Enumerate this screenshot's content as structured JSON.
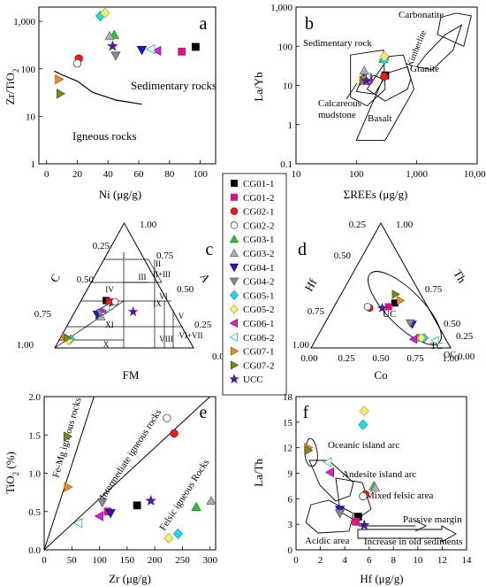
{
  "legend": [
    {
      "name": "CG01-1",
      "shape": "square",
      "fill": "#000000",
      "stroke": "#000000"
    },
    {
      "name": "CG01-2",
      "shape": "square",
      "fill": "#d6157f",
      "stroke": "#d6157f"
    },
    {
      "name": "CG02-1",
      "shape": "circle",
      "fill": "#e02020",
      "stroke": "#b00000"
    },
    {
      "name": "CG02-2",
      "shape": "circle",
      "fill": "#ffffff",
      "stroke": "#444444"
    },
    {
      "name": "CG03-1",
      "shape": "triangle",
      "fill": "#2ec42e",
      "stroke": "#1a8a1a"
    },
    {
      "name": "CG03-2",
      "shape": "triangle",
      "fill": "#b0b0b0",
      "stroke": "#707070"
    },
    {
      "name": "CG04-1",
      "shape": "triangle-down",
      "fill": "#1a1ad0",
      "stroke": "#00008a"
    },
    {
      "name": "CG04-2",
      "shape": "triangle-down",
      "fill": "#8a8a8a",
      "stroke": "#555555"
    },
    {
      "name": "CG05-1",
      "shape": "diamond",
      "fill": "#28d7e6",
      "stroke": "#0aa0b0"
    },
    {
      "name": "CG05-2",
      "shape": "diamond",
      "fill": "#f2ee7a",
      "stroke": "#b8a838"
    },
    {
      "name": "CG06-1",
      "shape": "triangle-left",
      "fill": "#d424d4",
      "stroke": "#8a108a"
    },
    {
      "name": "CG06-2",
      "shape": "triangle-left",
      "fill": "#ffffff",
      "stroke": "#20b0b0"
    },
    {
      "name": "CG07-1",
      "shape": "triangle-right",
      "fill": "#f08a2a",
      "stroke": "#b05a10"
    },
    {
      "name": "CG07-2",
      "shape": "triangle-right",
      "fill": "#7a8a20",
      "stroke": "#4a5a10"
    },
    {
      "name": "UCC",
      "shape": "star",
      "fill": "#4a1a9a",
      "stroke": "#4a1a9a"
    }
  ],
  "chart_data": [
    {
      "panel": "a",
      "type": "scatter",
      "xlabel": "Ni (μg/g)",
      "ylabel": "Zr/TiO2",
      "xlim": [
        -5,
        110
      ],
      "ylim": [
        1,
        2000
      ],
      "yscale": "log",
      "xticks": [
        0,
        20,
        40,
        60,
        80,
        100
      ],
      "yticks": [
        1,
        10,
        100,
        1000
      ],
      "yticklabels": [
        "1",
        "10",
        "100",
        "1,000"
      ],
      "region_labels": [
        "Sedimentary rocks",
        "Igneous rocks"
      ],
      "boundary": [
        [
          5,
          90
        ],
        [
          10,
          75
        ],
        [
          20,
          55
        ],
        [
          30,
          32
        ],
        [
          45,
          22
        ],
        [
          62,
          18
        ]
      ],
      "points": [
        {
          "name": "CG01-1",
          "x": 97,
          "y": 290
        },
        {
          "name": "CG01-2",
          "x": 88,
          "y": 230
        },
        {
          "name": "CG02-1",
          "x": 21,
          "y": 165
        },
        {
          "name": "CG02-2",
          "x": 20,
          "y": 130
        },
        {
          "name": "CG03-1",
          "x": 44,
          "y": 520
        },
        {
          "name": "CG03-2",
          "x": 41,
          "y": 490
        },
        {
          "name": "CG04-1",
          "x": 62,
          "y": 250
        },
        {
          "name": "CG04-2",
          "x": 45,
          "y": 190
        },
        {
          "name": "CG05-1",
          "x": 35,
          "y": 1300
        },
        {
          "name": "CG05-2",
          "x": 38,
          "y": 1500
        },
        {
          "name": "CG06-1",
          "x": 72,
          "y": 240
        },
        {
          "name": "CG06-2",
          "x": 68,
          "y": 260
        },
        {
          "name": "CG07-1",
          "x": 8,
          "y": 60
        },
        {
          "name": "CG07-2",
          "x": 9,
          "y": 30
        },
        {
          "name": "UCC",
          "x": 43,
          "y": 300
        }
      ]
    },
    {
      "panel": "b",
      "type": "scatter",
      "xlabel": "ΣREEs (μg/g)",
      "ylabel": "La/Yb",
      "xlim": [
        10,
        10000
      ],
      "ylim": [
        0.1,
        1000
      ],
      "xscale": "log",
      "yscale": "log",
      "xticks": [
        10,
        100,
        1000,
        10000
      ],
      "xticklabels": [
        "10",
        "100",
        "1,000",
        "10,000"
      ],
      "yticks": [
        0.1,
        1,
        10,
        100,
        1000
      ],
      "yticklabels": [
        "0.1",
        "1",
        "10",
        "100",
        "1,000"
      ],
      "region_labels": [
        "Carbonatite",
        "Kimberlite",
        "Sedimentary rock",
        "Granite",
        "Calcareous mudstone",
        "Basalt"
      ],
      "regions": {
        "carbonatite": [
          [
            2500,
            550
          ],
          [
            4500,
            700
          ],
          [
            8000,
            600
          ],
          [
            6000,
            100
          ],
          [
            2200,
            200
          ]
        ],
        "kimberlite": [
          [
            1000,
            30
          ],
          [
            1400,
            60
          ],
          [
            3000,
            200
          ],
          [
            5500,
            350
          ],
          [
            4000,
            80
          ],
          [
            1800,
            25
          ]
        ],
        "sedimentary": [
          [
            80,
            5
          ],
          [
            80,
            60
          ],
          [
            280,
            80
          ],
          [
            300,
            8
          ],
          [
            150,
            3
          ]
        ],
        "granite": [
          [
            150,
            8
          ],
          [
            350,
            55
          ],
          [
            600,
            60
          ],
          [
            800,
            15
          ],
          [
            700,
            8
          ],
          [
            300,
            4
          ]
        ],
        "calcareous": [
          [
            100,
            7
          ],
          [
            120,
            14
          ],
          [
            200,
            18
          ],
          [
            280,
            14
          ],
          [
            200,
            6
          ]
        ],
        "basalt": [
          [
            100,
            0.4
          ],
          [
            300,
            0.4
          ],
          [
            900,
            8
          ],
          [
            700,
            30
          ],
          [
            300,
            20
          ]
        ]
      },
      "points": [
        {
          "name": "CG01-1",
          "x": 300,
          "y": 18
        },
        {
          "name": "CG01-2",
          "x": 160,
          "y": 14
        },
        {
          "name": "CG02-1",
          "x": 290,
          "y": 17
        },
        {
          "name": "CG02-2",
          "x": 150,
          "y": 13
        },
        {
          "name": "CG03-1",
          "x": 280,
          "y": 48
        },
        {
          "name": "CG03-2",
          "x": 135,
          "y": 24
        },
        {
          "name": "CG04-1",
          "x": 150,
          "y": 15
        },
        {
          "name": "CG04-2",
          "x": 140,
          "y": 14
        },
        {
          "name": "CG05-1",
          "x": 290,
          "y": 45
        },
        {
          "name": "CG05-2",
          "x": 290,
          "y": 55
        },
        {
          "name": "CG06-1",
          "x": 155,
          "y": 15
        },
        {
          "name": "CG06-2",
          "x": 148,
          "y": 16
        },
        {
          "name": "CG07-1",
          "x": 140,
          "y": 14
        },
        {
          "name": "CG07-2",
          "x": 130,
          "y": 13
        },
        {
          "name": "UCC",
          "x": 146,
          "y": 13
        }
      ]
    },
    {
      "panel": "c",
      "type": "ternary",
      "xlabel": "FM",
      "left_label": "C",
      "right_label": "A",
      "left_ticks": [
        "0.25",
        "0.50",
        "0.75",
        "1.00"
      ],
      "right_ticks": [
        "1.00",
        "0.75",
        "0.50",
        "0.25",
        "0.00"
      ],
      "bottom_ticks": [
        "0.00"
      ],
      "field_labels": [
        "I",
        "II",
        "III",
        "IV",
        "VI",
        "V",
        "IX",
        "XI",
        "X",
        "VIII",
        "II+III",
        "VI+VII"
      ],
      "points": [
        {
          "name": "CG01-1",
          "fm": 0.44,
          "c": 0.38,
          "a": 0.18
        },
        {
          "name": "CG01-2",
          "fm": 0.42,
          "c": 0.37,
          "a": 0.21
        },
        {
          "name": "CG02-1",
          "fm": 0.43,
          "c": 0.36,
          "a": 0.21
        },
        {
          "name": "CG02-2",
          "fm": 0.38,
          "c": 0.37,
          "a": 0.25
        },
        {
          "name": "CG03-1",
          "fm": 0.55,
          "c": 0.26,
          "a": 0.19
        },
        {
          "name": "CG03-2",
          "fm": 0.54,
          "c": 0.25,
          "a": 0.21
        },
        {
          "name": "CG04-1",
          "fm": 0.56,
          "c": 0.27,
          "a": 0.17
        },
        {
          "name": "CG04-2",
          "fm": 0.53,
          "c": 0.28,
          "a": 0.19
        },
        {
          "name": "CG05-1",
          "fm": 0.85,
          "c": 0.07,
          "a": 0.08
        },
        {
          "name": "CG05-2",
          "fm": 0.87,
          "c": 0.06,
          "a": 0.07
        },
        {
          "name": "CG06-1",
          "fm": 0.5,
          "c": 0.31,
          "a": 0.19
        },
        {
          "name": "CG06-2",
          "fm": 0.47,
          "c": 0.32,
          "a": 0.21
        },
        {
          "name": "CG07-1",
          "fm": 0.88,
          "c": 0.09,
          "a": 0.03
        },
        {
          "name": "CG07-2",
          "fm": 0.87,
          "c": 0.08,
          "a": 0.05
        },
        {
          "name": "UCC",
          "fm": 0.29,
          "c": 0.29,
          "a": 0.42
        }
      ]
    },
    {
      "panel": "d",
      "type": "ternary",
      "xlabel": "Co",
      "left_label": "Hf",
      "right_label": "Th",
      "left_ticks": [
        "0.25",
        "0.50",
        "0.75",
        "1.00"
      ],
      "right_ticks": [
        "1.00",
        "0.75",
        "0.50",
        "0.25",
        "0.00"
      ],
      "bottom_ticks": [
        "0.00",
        "0.25",
        "0.50",
        "0.75",
        "1.00"
      ],
      "field_labels": [
        "UC",
        "TC",
        "OC"
      ],
      "points": [
        {
          "name": "CG01-1",
          "co": 0.22,
          "hf": 0.36,
          "th": 0.42
        },
        {
          "name": "CG01-2",
          "co": 0.28,
          "hf": 0.33,
          "th": 0.39
        },
        {
          "name": "CG02-1",
          "co": 0.42,
          "hf": 0.32,
          "th": 0.26
        },
        {
          "name": "CG02-2",
          "co": 0.43,
          "hf": 0.33,
          "th": 0.24
        },
        {
          "name": "CG03-1",
          "co": 0.19,
          "hf": 0.08,
          "th": 0.73
        },
        {
          "name": "CG03-2",
          "co": 0.2,
          "hf": 0.08,
          "th": 0.72
        },
        {
          "name": "CG04-1",
          "co": 0.18,
          "hf": 0.19,
          "th": 0.63
        },
        {
          "name": "CG04-2",
          "co": 0.19,
          "hf": 0.2,
          "th": 0.61
        },
        {
          "name": "CG05-1",
          "co": 0.15,
          "hf": 0.08,
          "th": 0.77
        },
        {
          "name": "CG05-2",
          "co": 0.17,
          "hf": 0.08,
          "th": 0.75
        },
        {
          "name": "CG06-1",
          "co": 0.23,
          "hf": 0.07,
          "th": 0.7
        },
        {
          "name": "CG06-2",
          "co": 0.08,
          "hf": 0.06,
          "th": 0.86
        },
        {
          "name": "CG07-1",
          "co": 0.17,
          "hf": 0.38,
          "th": 0.45
        },
        {
          "name": "CG07-2",
          "co": 0.18,
          "hf": 0.43,
          "th": 0.39
        },
        {
          "name": "UCC",
          "co": 0.33,
          "hf": 0.32,
          "th": 0.35
        }
      ]
    },
    {
      "panel": "e",
      "type": "scatter",
      "xlabel": "Zr (μg/g)",
      "ylabel": "TiO2 (%)",
      "xlim": [
        0,
        310
      ],
      "ylim": [
        0,
        2.0
      ],
      "xticks": [
        0,
        50,
        100,
        150,
        200,
        250,
        300
      ],
      "yticks": [
        0,
        0.5,
        1.0,
        1.5,
        2.0
      ],
      "yticklabels": [
        "0.0",
        "0.5",
        "1.0",
        "1.5",
        "2.0"
      ],
      "region_labels": [
        "Fe-Mg igneous rocks",
        "Intermediate igneous rocks",
        "Felsic igneous Rocks"
      ],
      "boundary_lines": [
        [
          [
            0,
            0
          ],
          [
            90,
            2.0
          ]
        ],
        [
          [
            0,
            0
          ],
          [
            300,
            2.0
          ]
        ]
      ],
      "points": [
        {
          "name": "CG01-1",
          "x": 168,
          "y": 0.58
        },
        {
          "name": "CG01-2",
          "x": 115,
          "y": 0.5
        },
        {
          "name": "CG02-1",
          "x": 235,
          "y": 1.52
        },
        {
          "name": "CG02-2",
          "x": 222,
          "y": 1.72
        },
        {
          "name": "CG03-1",
          "x": 275,
          "y": 0.56
        },
        {
          "name": "CG03-2",
          "x": 302,
          "y": 0.64
        },
        {
          "name": "CG04-1",
          "x": 120,
          "y": 0.48
        },
        {
          "name": "CG04-2",
          "x": 105,
          "y": 0.62
        },
        {
          "name": "CG05-1",
          "x": 242,
          "y": 0.21
        },
        {
          "name": "CG05-2",
          "x": 225,
          "y": 0.15
        },
        {
          "name": "CG06-1",
          "x": 100,
          "y": 0.44
        },
        {
          "name": "CG06-2",
          "x": 62,
          "y": 0.35
        },
        {
          "name": "CG07-1",
          "x": 43,
          "y": 0.82
        },
        {
          "name": "CG07-2",
          "x": 42,
          "y": 1.48
        },
        {
          "name": "UCC",
          "x": 193,
          "y": 0.64
        }
      ]
    },
    {
      "panel": "f",
      "type": "scatter",
      "xlabel": "Hf (μg/g)",
      "ylabel": "La/Th",
      "xlim": [
        0,
        14
      ],
      "ylim": [
        0,
        18
      ],
      "xticks": [
        0,
        2,
        4,
        6,
        8,
        10,
        12,
        14
      ],
      "yticks": [
        0,
        3,
        6,
        9,
        12,
        15,
        18
      ],
      "region_labels": [
        "Oceanic island arc",
        "Andesite island arc",
        "Mixed felsic area",
        "Passive margin",
        "Acidic area",
        "Increase in old sediments"
      ],
      "points": [
        {
          "name": "CG01-1",
          "x": 5.1,
          "y": 3.9
        },
        {
          "name": "CG01-2",
          "x": 4.9,
          "y": 3.3
        },
        {
          "name": "CG02-1",
          "x": 5.7,
          "y": 6.5
        },
        {
          "name": "CG02-2",
          "x": 5.5,
          "y": 6.3
        },
        {
          "name": "CG03-1",
          "x": 6.4,
          "y": 7.5
        },
        {
          "name": "CG03-2",
          "x": 6.5,
          "y": 7.3
        },
        {
          "name": "CG04-1",
          "x": 3.6,
          "y": 4.7
        },
        {
          "name": "CG04-2",
          "x": 3.6,
          "y": 4.3
        },
        {
          "name": "CG05-1",
          "x": 5.5,
          "y": 14.7
        },
        {
          "name": "CG05-2",
          "x": 5.6,
          "y": 16.3
        },
        {
          "name": "CG06-1",
          "x": 2.8,
          "y": 9.1
        },
        {
          "name": "CG06-2",
          "x": 2.6,
          "y": 10.3
        },
        {
          "name": "CG07-1",
          "x": 1.0,
          "y": 12.0
        },
        {
          "name": "CG07-2",
          "x": 1.0,
          "y": 11.7
        },
        {
          "name": "UCC",
          "x": 5.6,
          "y": 2.9
        }
      ]
    }
  ],
  "panel_letters": {
    "a": "a",
    "b": "b",
    "c": "c",
    "d": "d",
    "e": "e",
    "f": "f"
  },
  "labels": {
    "a_ylabel": "Zr/TiO",
    "a_ylabel_sub": "2",
    "a_xlabel": "Ni (μg/g)",
    "a_sed": "Sedimentary rocks",
    "a_ign": "Igneous rocks",
    "b_ylabel": "La/Yb",
    "b_xlabel": "ΣREEs (μg/g)",
    "b_carb": "Carbonatite",
    "b_kimb": "Kimberlite",
    "b_sed": "Sedimentary rock",
    "b_gran": "Granite",
    "b_calc1": "Calcareous",
    "b_calc2": "mudstone",
    "b_bas": "Basalt",
    "c_xlabel": "FM",
    "c_left": "C",
    "c_right": "A",
    "d_xlabel": "Co",
    "d_left": "Hf",
    "d_right": "Th",
    "d_uc": "UC",
    "d_tc": "TC",
    "d_oc": "OC",
    "e_ylabel": "TiO",
    "e_ylabel_sub": "2",
    "e_ylabel_rest": " (%)",
    "e_xlabel": "Zr (μg/g)",
    "e_femg": "Fe-Mg igneous rocks",
    "e_int": "Intermediate igneous rocks",
    "e_fel": "Felsic igneous Rocks",
    "f_ylabel": "La/Th",
    "f_xlabel": "Hf (μg/g)",
    "f_oia": "Oceanic island arc",
    "f_aia": "Andesite island arc",
    "f_mfa": "Mixed felsic area",
    "f_pm": "Passive margin",
    "f_aa": "Acidic area",
    "f_old": "Increase in old sediments"
  }
}
